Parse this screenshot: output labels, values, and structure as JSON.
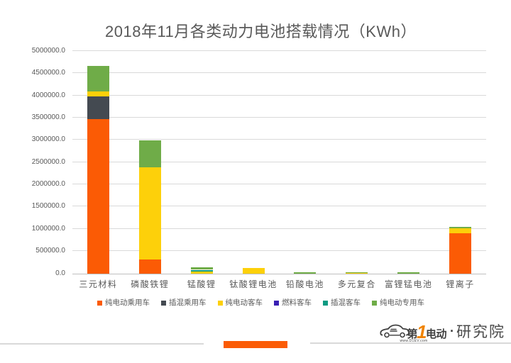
{
  "title": "2018年11月各类动力电池搭载情况（KWh）",
  "colors": {
    "orange": "#fb5b05",
    "dark_gray": "#444a51",
    "yellow": "#fdd00a",
    "blue": "#3a20b3",
    "teal": "#0d9b82",
    "green": "#6fac48",
    "grid": "#d9d9d9",
    "axis_text": "#595959",
    "accent_bar": "#fb5b05"
  },
  "chart_data": {
    "type": "bar",
    "stacked": true,
    "title": "2018年11月各类动力电池搭载情况（KWh）",
    "xlabel": "",
    "ylabel": "",
    "ylim": [
      0,
      5000000
    ],
    "y_tick_step": 500000,
    "y_tick_labels": [
      "0.0",
      "500000.0",
      "1000000.0",
      "1500000.0",
      "2000000.0",
      "2500000.0",
      "3000000.0",
      "3500000.0",
      "4000000.0",
      "4500000.0",
      "5000000.0"
    ],
    "grid": true,
    "legend_position": "bottom",
    "categories": [
      "三元材料",
      "磷酸铁锂",
      "锰酸锂",
      "钛酸锂电池",
      "铅酸电池",
      "多元复合",
      "富锂锰电池",
      "锂离子"
    ],
    "series": [
      {
        "name": "纯电动乘用车",
        "color_key": "orange",
        "values": [
          3470000,
          315000,
          0,
          0,
          0,
          0,
          0,
          905000
        ]
      },
      {
        "name": "插混乘用车",
        "color_key": "dark_gray",
        "values": [
          510000,
          0,
          0,
          0,
          0,
          0,
          0,
          0
        ]
      },
      {
        "name": "纯电动客车",
        "color_key": "yellow",
        "values": [
          110000,
          2070000,
          45000,
          115000,
          0,
          10000,
          0,
          115000
        ]
      },
      {
        "name": "燃料客车",
        "color_key": "blue",
        "values": [
          0,
          0,
          0,
          0,
          0,
          0,
          0,
          0
        ]
      },
      {
        "name": "插混客车",
        "color_key": "teal",
        "values": [
          0,
          0,
          35000,
          0,
          0,
          0,
          0,
          0
        ]
      },
      {
        "name": "纯电动专用车",
        "color_key": "green",
        "values": [
          575000,
          610000,
          50000,
          0,
          28000,
          14000,
          28000,
          32000
        ]
      }
    ]
  },
  "footer": {
    "logo_prefix": "第",
    "logo_one": "1",
    "logo_suffix": "电动",
    "logo_dot": "·",
    "logo_institute": "研究院",
    "logo_url": "www.D1EV.com"
  }
}
